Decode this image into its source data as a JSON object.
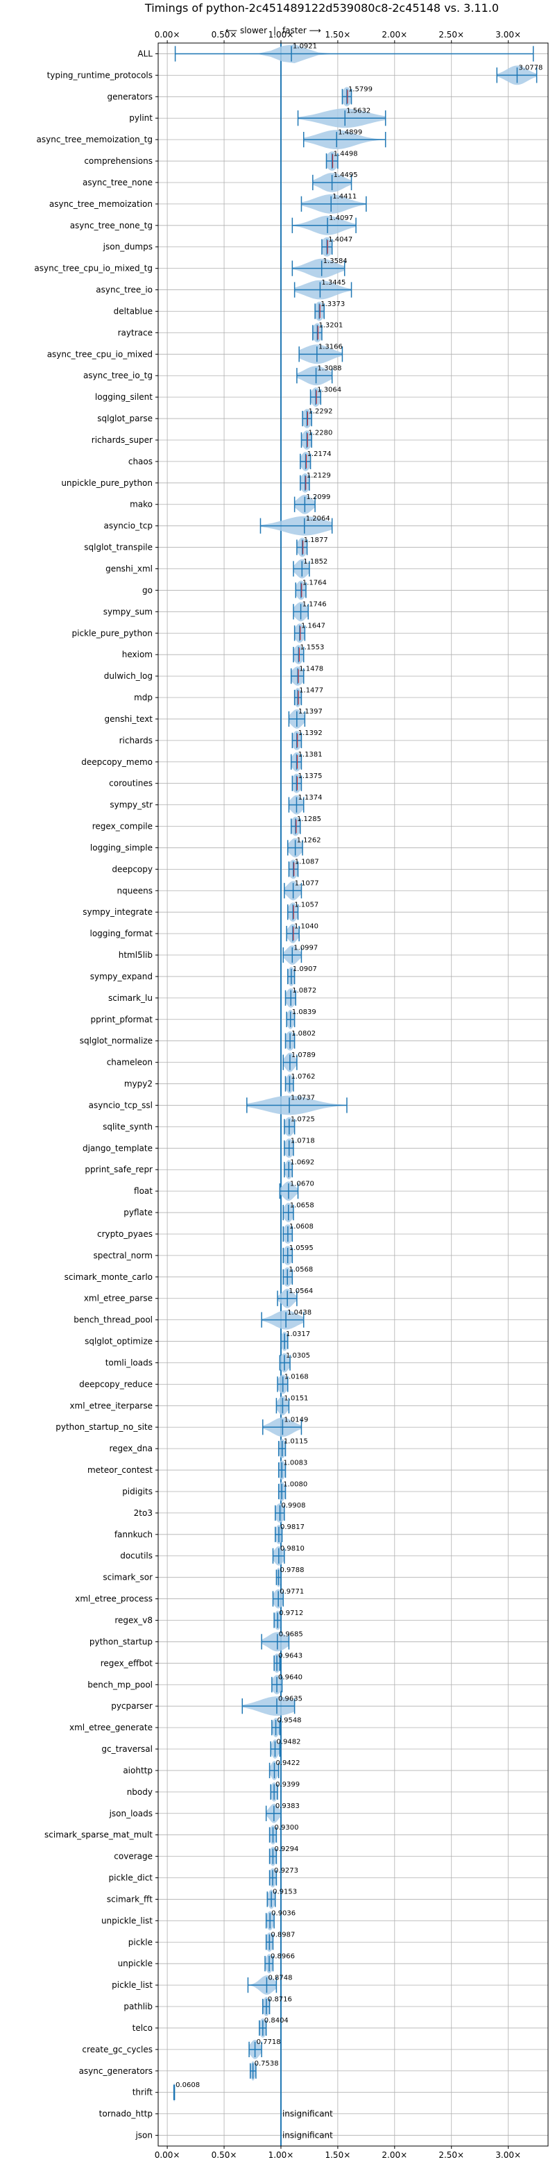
{
  "chart_data": {
    "type": "violin",
    "title": "Timings of python-2c451489122d539080c8-2c45148 vs. 3.11.0",
    "xlabel": "",
    "ylabel": "",
    "direction_labels": {
      "slower": "⟵ slower",
      "separator": "|",
      "faster": "faster ⟶"
    },
    "xlim": [
      -0.08,
      3.35
    ],
    "xticks": [
      0.0,
      0.5,
      1.0,
      1.5,
      2.0,
      2.5,
      3.0
    ],
    "xtick_labels": [
      "0.00×",
      "0.50×",
      "1.00×",
      "1.50×",
      "2.00×",
      "2.50×",
      "3.00×"
    ],
    "grid": true,
    "reference_line": 1.0,
    "colors": {
      "body": "#a9cbe8",
      "line": "#1f77b4",
      "median": "#d62728",
      "grid": "#b0b0b0",
      "text": "#000000"
    },
    "benchmarks": [
      {
        "name": "ALL",
        "value": 1.0921,
        "label": "1.0921",
        "min": 0.07,
        "max": 3.22,
        "spread": 0.12
      },
      {
        "name": "typing_runtime_protocols",
        "value": 3.0778,
        "label": "3.0778",
        "min": 2.9,
        "max": 3.25,
        "spread": 0.09
      },
      {
        "name": "generators",
        "value": 1.5799,
        "label": "1.5799",
        "min": 1.54,
        "max": 1.62,
        "spread": 0.04
      },
      {
        "name": "pylint",
        "value": 1.5632,
        "label": "1.5632",
        "min": 1.15,
        "max": 1.92,
        "spread": 0.2
      },
      {
        "name": "async_tree_memoization_tg",
        "value": 1.4899,
        "label": "1.4899",
        "min": 1.2,
        "max": 1.92,
        "spread": 0.16
      },
      {
        "name": "comprehensions",
        "value": 1.4498,
        "label": "1.4498",
        "min": 1.4,
        "max": 1.5,
        "spread": 0.05
      },
      {
        "name": "async_tree_none",
        "value": 1.4495,
        "label": "1.4495",
        "min": 1.28,
        "max": 1.62,
        "spread": 0.1
      },
      {
        "name": "async_tree_memoization",
        "value": 1.4411,
        "label": "1.4411",
        "min": 1.18,
        "max": 1.75,
        "spread": 0.14
      },
      {
        "name": "async_tree_none_tg",
        "value": 1.4097,
        "label": "1.4097",
        "min": 1.1,
        "max": 1.66,
        "spread": 0.13
      },
      {
        "name": "json_dumps",
        "value": 1.4047,
        "label": "1.4047",
        "min": 1.36,
        "max": 1.45,
        "spread": 0.05
      },
      {
        "name": "async_tree_cpu_io_mixed_tg",
        "value": 1.3584,
        "label": "1.3584",
        "min": 1.1,
        "max": 1.56,
        "spread": 0.12
      },
      {
        "name": "async_tree_io",
        "value": 1.3445,
        "label": "1.3445",
        "min": 1.12,
        "max": 1.62,
        "spread": 0.13
      },
      {
        "name": "deltablue",
        "value": 1.3373,
        "label": "1.3373",
        "min": 1.3,
        "max": 1.38,
        "spread": 0.04
      },
      {
        "name": "raytrace",
        "value": 1.3201,
        "label": "1.3201",
        "min": 1.28,
        "max": 1.36,
        "spread": 0.04
      },
      {
        "name": "async_tree_cpu_io_mixed",
        "value": 1.3166,
        "label": "1.3166",
        "min": 1.16,
        "max": 1.54,
        "spread": 0.12
      },
      {
        "name": "async_tree_io_tg",
        "value": 1.3088,
        "label": "1.3088",
        "min": 1.14,
        "max": 1.45,
        "spread": 0.1
      },
      {
        "name": "logging_silent",
        "value": 1.3064,
        "label": "1.3064",
        "min": 1.26,
        "max": 1.35,
        "spread": 0.04
      },
      {
        "name": "sqlglot_parse",
        "value": 1.2292,
        "label": "1.2292",
        "min": 1.19,
        "max": 1.27,
        "spread": 0.04
      },
      {
        "name": "richards_super",
        "value": 1.228,
        "label": "1.2280",
        "min": 1.18,
        "max": 1.27,
        "spread": 0.04
      },
      {
        "name": "chaos",
        "value": 1.2174,
        "label": "1.2174",
        "min": 1.17,
        "max": 1.26,
        "spread": 0.04
      },
      {
        "name": "unpickle_pure_python",
        "value": 1.2129,
        "label": "1.2129",
        "min": 1.17,
        "max": 1.25,
        "spread": 0.04
      },
      {
        "name": "mako",
        "value": 1.2099,
        "label": "1.2099",
        "min": 1.12,
        "max": 1.3,
        "spread": 0.06
      },
      {
        "name": "asyncio_tcp",
        "value": 1.2064,
        "label": "1.2064",
        "min": 0.82,
        "max": 1.45,
        "spread": 0.18
      },
      {
        "name": "sqlglot_transpile",
        "value": 1.1877,
        "label": "1.1877",
        "min": 1.14,
        "max": 1.23,
        "spread": 0.04
      },
      {
        "name": "genshi_xml",
        "value": 1.1852,
        "label": "1.1852",
        "min": 1.11,
        "max": 1.25,
        "spread": 0.05
      },
      {
        "name": "go",
        "value": 1.1764,
        "label": "1.1764",
        "min": 1.13,
        "max": 1.22,
        "spread": 0.04
      },
      {
        "name": "sympy_sum",
        "value": 1.1746,
        "label": "1.1746",
        "min": 1.11,
        "max": 1.24,
        "spread": 0.05
      },
      {
        "name": "pickle_pure_python",
        "value": 1.1647,
        "label": "1.1647",
        "min": 1.12,
        "max": 1.21,
        "spread": 0.04
      },
      {
        "name": "hexiom",
        "value": 1.1553,
        "label": "1.1553",
        "min": 1.11,
        "max": 1.2,
        "spread": 0.04
      },
      {
        "name": "dulwich_log",
        "value": 1.1478,
        "label": "1.1478",
        "min": 1.09,
        "max": 1.2,
        "spread": 0.05
      },
      {
        "name": "mdp",
        "value": 1.1477,
        "label": "1.1477",
        "min": 1.12,
        "max": 1.18,
        "spread": 0.03
      },
      {
        "name": "genshi_text",
        "value": 1.1397,
        "label": "1.1397",
        "min": 1.07,
        "max": 1.21,
        "spread": 0.05
      },
      {
        "name": "richards",
        "value": 1.1392,
        "label": "1.1392",
        "min": 1.1,
        "max": 1.18,
        "spread": 0.04
      },
      {
        "name": "deepcopy_memo",
        "value": 1.1381,
        "label": "1.1381",
        "min": 1.09,
        "max": 1.18,
        "spread": 0.04
      },
      {
        "name": "coroutines",
        "value": 1.1375,
        "label": "1.1375",
        "min": 1.1,
        "max": 1.18,
        "spread": 0.04
      },
      {
        "name": "sympy_str",
        "value": 1.1374,
        "label": "1.1374",
        "min": 1.07,
        "max": 1.2,
        "spread": 0.05
      },
      {
        "name": "regex_compile",
        "value": 1.1285,
        "label": "1.1285",
        "min": 1.09,
        "max": 1.17,
        "spread": 0.04
      },
      {
        "name": "logging_simple",
        "value": 1.1262,
        "label": "1.1262",
        "min": 1.06,
        "max": 1.19,
        "spread": 0.05
      },
      {
        "name": "deepcopy",
        "value": 1.1087,
        "label": "1.1087",
        "min": 1.07,
        "max": 1.15,
        "spread": 0.04
      },
      {
        "name": "nqueens",
        "value": 1.1077,
        "label": "1.1077",
        "min": 1.03,
        "max": 1.18,
        "spread": 0.05
      },
      {
        "name": "sympy_integrate",
        "value": 1.1057,
        "label": "1.1057",
        "min": 1.06,
        "max": 1.15,
        "spread": 0.04
      },
      {
        "name": "logging_format",
        "value": 1.104,
        "label": "1.1040",
        "min": 1.05,
        "max": 1.16,
        "spread": 0.04
      },
      {
        "name": "html5lib",
        "value": 1.0997,
        "label": "1.0997",
        "min": 1.02,
        "max": 1.18,
        "spread": 0.05
      },
      {
        "name": "sympy_expand",
        "value": 1.0907,
        "label": "1.0907",
        "min": 1.06,
        "max": 1.12,
        "spread": 0.03
      },
      {
        "name": "scimark_lu",
        "value": 1.0872,
        "label": "1.0872",
        "min": 1.04,
        "max": 1.13,
        "spread": 0.04
      },
      {
        "name": "pprint_pformat",
        "value": 1.0839,
        "label": "1.0839",
        "min": 1.05,
        "max": 1.12,
        "spread": 0.03
      },
      {
        "name": "sqlglot_normalize",
        "value": 1.0802,
        "label": "1.0802",
        "min": 1.04,
        "max": 1.12,
        "spread": 0.04
      },
      {
        "name": "chameleon",
        "value": 1.0789,
        "label": "1.0789",
        "min": 1.02,
        "max": 1.14,
        "spread": 0.04
      },
      {
        "name": "mypy2",
        "value": 1.0762,
        "label": "1.0762",
        "min": 1.04,
        "max": 1.11,
        "spread": 0.03
      },
      {
        "name": "asyncio_tcp_ssl",
        "value": 1.0737,
        "label": "1.0737",
        "min": 0.7,
        "max": 1.58,
        "spread": 0.2
      },
      {
        "name": "sqlite_synth",
        "value": 1.0725,
        "label": "1.0725",
        "min": 1.03,
        "max": 1.12,
        "spread": 0.04
      },
      {
        "name": "django_template",
        "value": 1.0718,
        "label": "1.0718",
        "min": 1.03,
        "max": 1.11,
        "spread": 0.04
      },
      {
        "name": "pprint_safe_repr",
        "value": 1.0692,
        "label": "1.0692",
        "min": 1.03,
        "max": 1.1,
        "spread": 0.03
      },
      {
        "name": "float",
        "value": 1.067,
        "label": "1.0670",
        "min": 0.99,
        "max": 1.15,
        "spread": 0.05
      },
      {
        "name": "pyflate",
        "value": 1.0658,
        "label": "1.0658",
        "min": 1.02,
        "max": 1.11,
        "spread": 0.04
      },
      {
        "name": "crypto_pyaes",
        "value": 1.0608,
        "label": "1.0608",
        "min": 1.02,
        "max": 1.1,
        "spread": 0.04
      },
      {
        "name": "spectral_norm",
        "value": 1.0595,
        "label": "1.0595",
        "min": 1.02,
        "max": 1.1,
        "spread": 0.04
      },
      {
        "name": "scimark_monte_carlo",
        "value": 1.0568,
        "label": "1.0568",
        "min": 1.02,
        "max": 1.1,
        "spread": 0.04
      },
      {
        "name": "xml_etree_parse",
        "value": 1.0564,
        "label": "1.0564",
        "min": 0.97,
        "max": 1.14,
        "spread": 0.05
      },
      {
        "name": "bench_thread_pool",
        "value": 1.0438,
        "label": "1.0438",
        "min": 0.83,
        "max": 1.2,
        "spread": 0.1
      },
      {
        "name": "sqlglot_optimize",
        "value": 1.0317,
        "label": "1.0317",
        "min": 1.0,
        "max": 1.06,
        "spread": 0.03
      },
      {
        "name": "tomli_loads",
        "value": 1.0305,
        "label": "1.0305",
        "min": 0.99,
        "max": 1.08,
        "spread": 0.04
      },
      {
        "name": "deepcopy_reduce",
        "value": 1.0168,
        "label": "1.0168",
        "min": 0.97,
        "max": 1.06,
        "spread": 0.04
      },
      {
        "name": "xml_etree_iterparse",
        "value": 1.0151,
        "label": "1.0151",
        "min": 0.96,
        "max": 1.07,
        "spread": 0.04
      },
      {
        "name": "python_startup_no_site",
        "value": 1.0149,
        "label": "1.0149",
        "min": 0.84,
        "max": 1.18,
        "spread": 0.09
      },
      {
        "name": "regex_dna",
        "value": 1.0115,
        "label": "1.0115",
        "min": 0.98,
        "max": 1.04,
        "spread": 0.03
      },
      {
        "name": "meteor_contest",
        "value": 1.0083,
        "label": "1.0083",
        "min": 0.98,
        "max": 1.04,
        "spread": 0.03
      },
      {
        "name": "pidigits",
        "value": 1.008,
        "label": "1.0080",
        "min": 0.98,
        "max": 1.04,
        "spread": 0.03
      },
      {
        "name": "2to3",
        "value": 0.9908,
        "label": "0.9908",
        "min": 0.95,
        "max": 1.03,
        "spread": 0.04
      },
      {
        "name": "fannkuch",
        "value": 0.9817,
        "label": "0.9817",
        "min": 0.95,
        "max": 1.01,
        "spread": 0.03
      },
      {
        "name": "docutils",
        "value": 0.981,
        "label": "0.9810",
        "min": 0.93,
        "max": 1.03,
        "spread": 0.04
      },
      {
        "name": "scimark_sor",
        "value": 0.9788,
        "label": "0.9788",
        "min": 0.96,
        "max": 1.0,
        "spread": 0.02
      },
      {
        "name": "xml_etree_process",
        "value": 0.9771,
        "label": "0.9771",
        "min": 0.93,
        "max": 1.02,
        "spread": 0.04
      },
      {
        "name": "regex_v8",
        "value": 0.9712,
        "label": "0.9712",
        "min": 0.94,
        "max": 1.0,
        "spread": 0.03
      },
      {
        "name": "python_startup",
        "value": 0.9685,
        "label": "0.9685",
        "min": 0.83,
        "max": 1.07,
        "spread": 0.08
      },
      {
        "name": "regex_effbot",
        "value": 0.9643,
        "label": "0.9643",
        "min": 0.94,
        "max": 0.99,
        "spread": 0.03
      },
      {
        "name": "bench_mp_pool",
        "value": 0.964,
        "label": "0.9640",
        "min": 0.92,
        "max": 1.01,
        "spread": 0.04
      },
      {
        "name": "pycparser",
        "value": 0.9635,
        "label": "0.9635",
        "min": 0.66,
        "max": 1.12,
        "spread": 0.15
      },
      {
        "name": "xml_etree_generate",
        "value": 0.9548,
        "label": "0.9548",
        "min": 0.92,
        "max": 0.99,
        "spread": 0.03
      },
      {
        "name": "gc_traversal",
        "value": 0.9482,
        "label": "0.9482",
        "min": 0.91,
        "max": 0.99,
        "spread": 0.03
      },
      {
        "name": "aiohttp",
        "value": 0.9422,
        "label": "0.9422",
        "min": 0.9,
        "max": 0.98,
        "spread": 0.03
      },
      {
        "name": "nbody",
        "value": 0.9399,
        "label": "0.9399",
        "min": 0.91,
        "max": 0.97,
        "spread": 0.03
      },
      {
        "name": "json_loads",
        "value": 0.9383,
        "label": "0.9383",
        "min": 0.87,
        "max": 1.0,
        "spread": 0.04
      },
      {
        "name": "scimark_sparse_mat_mult",
        "value": 0.93,
        "label": "0.9300",
        "min": 0.9,
        "max": 0.96,
        "spread": 0.03
      },
      {
        "name": "coverage",
        "value": 0.9294,
        "label": "0.9294",
        "min": 0.9,
        "max": 0.96,
        "spread": 0.03
      },
      {
        "name": "pickle_dict",
        "value": 0.9273,
        "label": "0.9273",
        "min": 0.9,
        "max": 0.96,
        "spread": 0.03
      },
      {
        "name": "scimark_fft",
        "value": 0.9153,
        "label": "0.9153",
        "min": 0.88,
        "max": 0.95,
        "spread": 0.03
      },
      {
        "name": "unpickle_list",
        "value": 0.9036,
        "label": "0.9036",
        "min": 0.87,
        "max": 0.94,
        "spread": 0.03
      },
      {
        "name": "pickle",
        "value": 0.8987,
        "label": "0.8987",
        "min": 0.87,
        "max": 0.93,
        "spread": 0.03
      },
      {
        "name": "unpickle",
        "value": 0.8966,
        "label": "0.8966",
        "min": 0.86,
        "max": 0.93,
        "spread": 0.03
      },
      {
        "name": "pickle_list",
        "value": 0.8748,
        "label": "0.8748",
        "min": 0.71,
        "max": 0.96,
        "spread": 0.06
      },
      {
        "name": "pathlib",
        "value": 0.8716,
        "label": "0.8716",
        "min": 0.84,
        "max": 0.9,
        "spread": 0.03
      },
      {
        "name": "telco",
        "value": 0.8404,
        "label": "0.8404",
        "min": 0.81,
        "max": 0.87,
        "spread": 0.03
      },
      {
        "name": "create_gc_cycles",
        "value": 0.7718,
        "label": "0.7718",
        "min": 0.72,
        "max": 0.83,
        "spread": 0.04
      },
      {
        "name": "async_generators",
        "value": 0.7538,
        "label": "0.7538",
        "min": 0.73,
        "max": 0.78,
        "spread": 0.02
      },
      {
        "name": "thrift",
        "value": 0.0608,
        "label": "0.0608",
        "min": 0.058,
        "max": 0.064,
        "spread": 0.005
      },
      {
        "name": "tornado_http",
        "value": null,
        "label": "insignificant"
      },
      {
        "name": "json",
        "value": null,
        "label": "insignificant"
      }
    ]
  }
}
